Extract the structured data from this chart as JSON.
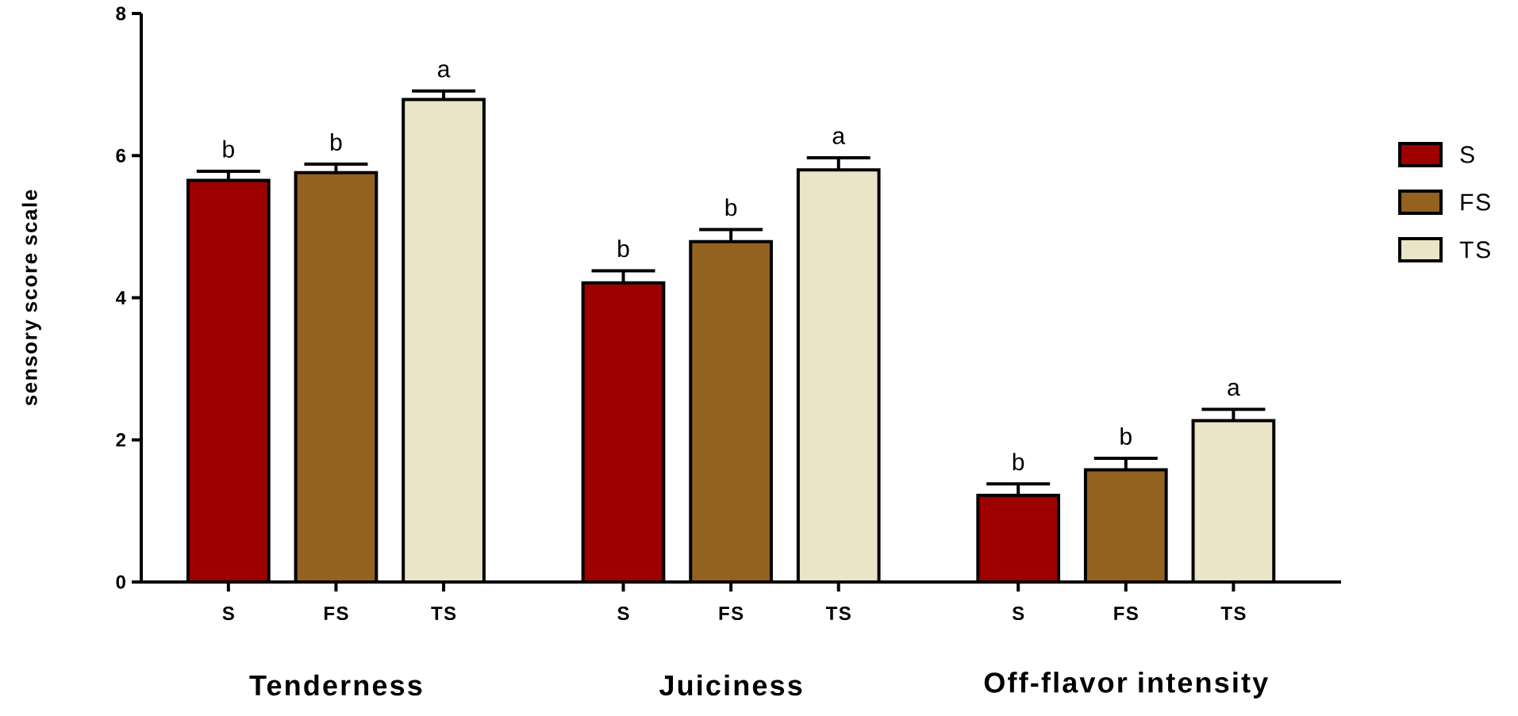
{
  "chart_data": {
    "type": "bar",
    "ylabel": "sensory score scale",
    "categories": [
      "Tenderness",
      "Juiciness",
      "Off-flavor intensity"
    ],
    "series": [
      {
        "name": "S",
        "color": "#9e0000",
        "values": [
          5.65,
          4.21,
          1.22
        ],
        "errors": [
          0.13,
          0.17,
          0.16
        ],
        "value_labels": [
          "b",
          "b",
          "b"
        ]
      },
      {
        "name": "FS",
        "color": "#93621f",
        "values": [
          5.76,
          4.79,
          1.58
        ],
        "errors": [
          0.12,
          0.17,
          0.16
        ],
        "value_labels": [
          "b",
          "b",
          "b"
        ]
      },
      {
        "name": "TS",
        "color": "#ebe5c8",
        "values": [
          6.79,
          5.8,
          2.27
        ],
        "errors": [
          0.12,
          0.17,
          0.16
        ],
        "value_labels": [
          "a",
          "a",
          "a"
        ]
      }
    ],
    "ylim": [
      0,
      8
    ],
    "yticks": [
      0,
      2,
      4,
      6,
      8
    ],
    "legend": "right",
    "grid": false
  }
}
